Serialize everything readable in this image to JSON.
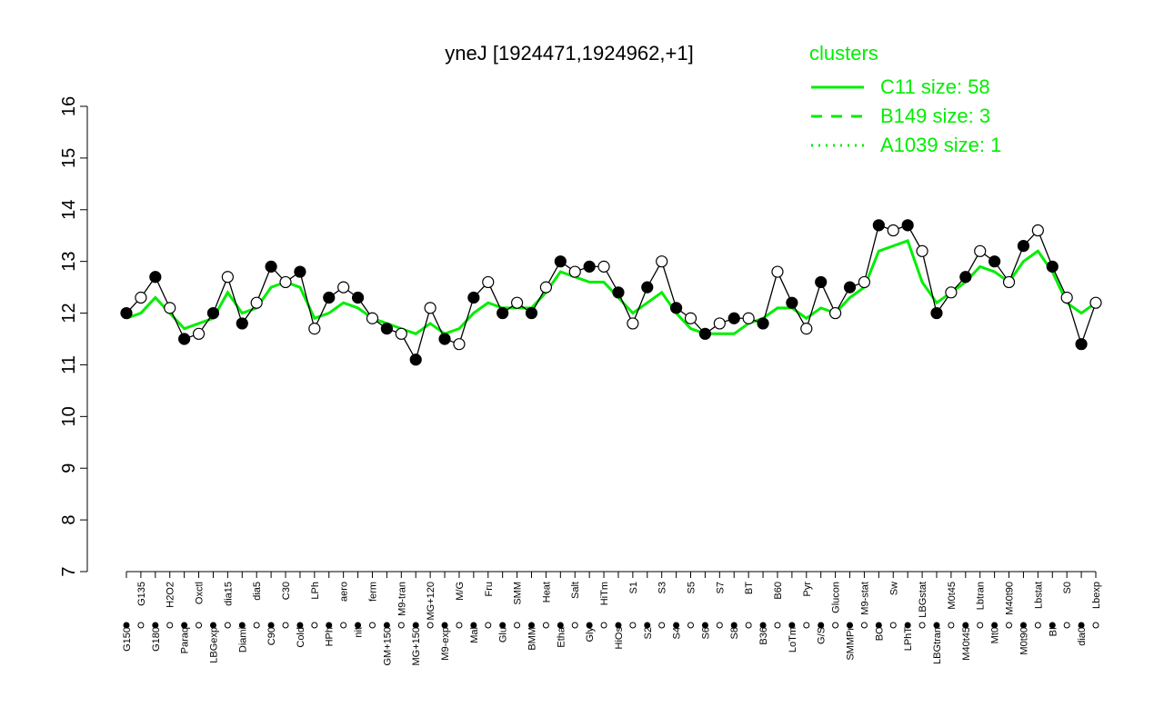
{
  "chart_data": {
    "type": "line",
    "title": "yneJ [1924471,1924962,+1]",
    "categories": [
      "G150",
      "G135",
      "G180",
      "H2O2",
      "Paraq",
      "Oxctl",
      "LBGexp",
      "dia15",
      "Diami",
      "dia5",
      "C90",
      "C30",
      "Cold",
      "LPh",
      "HPh",
      "aero",
      "nit",
      "ferm",
      "GM+150",
      "M9-tran",
      "MG+150",
      "MG+120",
      "M9-exp",
      "M/G",
      "Mal",
      "Fru",
      "Glu",
      "SMM",
      "BMM",
      "Heat",
      "Etha",
      "Salt",
      "Gly",
      "HiTm",
      "HiOs",
      "S1",
      "S2",
      "S3",
      "S4",
      "S5",
      "S6",
      "S7",
      "S8",
      "BT",
      "B36",
      "B60",
      "LoTm",
      "Pyr",
      "G/S",
      "Glucon",
      "SMMPr",
      "M9-stat",
      "BC",
      "Sw",
      "LPhT",
      "LBGstat",
      "LBGtran",
      "M0t45",
      "M40t45",
      "Lbtran",
      "Mt0",
      "M40t90",
      "M0t90",
      "Lbstat",
      "BI",
      "S0",
      "dia0",
      "Lbexp"
    ],
    "values": [
      12.0,
      12.3,
      12.7,
      12.1,
      11.5,
      11.6,
      12.0,
      12.7,
      11.8,
      12.2,
      12.9,
      12.6,
      12.8,
      11.7,
      12.3,
      12.5,
      12.3,
      11.9,
      11.7,
      11.6,
      11.1,
      12.1,
      11.5,
      11.4,
      12.3,
      12.6,
      12.0,
      12.2,
      12.0,
      12.5,
      13.0,
      12.8,
      12.9,
      12.9,
      12.4,
      11.8,
      12.5,
      13.0,
      12.1,
      11.9,
      11.6,
      11.8,
      11.9,
      11.9,
      11.8,
      12.8,
      12.2,
      11.7,
      12.6,
      12.0,
      12.5,
      12.6,
      13.7,
      13.6,
      13.7,
      13.2,
      12.0,
      12.4,
      12.7,
      13.2,
      13.0,
      12.6,
      13.3,
      13.6,
      12.9,
      12.3,
      11.4,
      12.2
    ],
    "series": [
      {
        "name": "C11 size: 58",
        "color": "#00ee00",
        "values": [
          11.9,
          12.0,
          12.3,
          12.0,
          11.7,
          11.8,
          11.9,
          12.4,
          12.0,
          12.1,
          12.5,
          12.6,
          12.5,
          11.9,
          12.0,
          12.2,
          12.1,
          11.9,
          11.8,
          11.7,
          11.6,
          11.8,
          11.6,
          11.7,
          12.0,
          12.2,
          12.1,
          12.1,
          12.1,
          12.4,
          12.8,
          12.7,
          12.6,
          12.6,
          12.3,
          12.0,
          12.2,
          12.4,
          12.0,
          11.7,
          11.6,
          11.6,
          11.6,
          11.8,
          11.9,
          12.1,
          12.1,
          11.9,
          12.1,
          12.0,
          12.3,
          12.5,
          13.2,
          13.3,
          13.4,
          12.6,
          12.2,
          12.4,
          12.6,
          12.9,
          12.8,
          12.6,
          13.0,
          13.2,
          12.8,
          12.2,
          12.0,
          12.2
        ]
      },
      {
        "name": "B149 size: 3",
        "color": "#00ee00"
      },
      {
        "name": "A1039 size: 1",
        "color": "#00ee00"
      }
    ],
    "legend_title": "clusters",
    "ylim": [
      7,
      16
    ],
    "yticks": [
      7,
      8,
      9,
      10,
      11,
      12,
      13,
      14,
      15,
      16
    ]
  }
}
